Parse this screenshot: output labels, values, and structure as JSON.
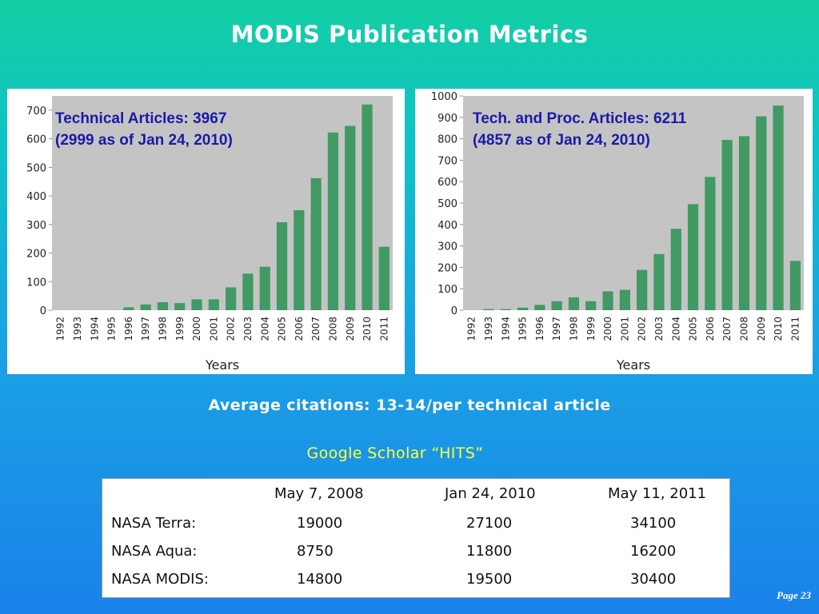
{
  "slide": {
    "title": "MODIS Publication Metrics",
    "citations": "Average citations: 13-14/per technical article",
    "scholar_heading": "Google Scholar “HITS”",
    "page_label": "Page 23"
  },
  "chart_data": [
    {
      "type": "bar",
      "note_line1": "Technical Articles: 3967",
      "note_line2": "(2999 as of Jan 24, 2010)",
      "xlabel": "Years",
      "ylabel": "",
      "ylim": [
        0,
        750
      ],
      "yticks": [
        0,
        100,
        200,
        300,
        400,
        500,
        600,
        700
      ],
      "grid": "none",
      "bar_color": "#419a63",
      "plot_bg": "#c4c4c4",
      "categories": [
        "1992",
        "1993",
        "1994",
        "1995",
        "1996",
        "1997",
        "1998",
        "1999",
        "2000",
        "2001",
        "2002",
        "2003",
        "2004",
        "2005",
        "2006",
        "2007",
        "2008",
        "2009",
        "2010",
        "2011"
      ],
      "values": [
        0,
        0,
        0,
        0,
        10,
        20,
        28,
        25,
        38,
        38,
        80,
        128,
        152,
        308,
        350,
        462,
        622,
        645,
        720,
        222
      ]
    },
    {
      "type": "bar",
      "note_line1": "Tech. and Proc. Articles: 6211",
      "note_line2": "(4857 as of Jan 24, 2010)",
      "xlabel": "Years",
      "ylabel": "",
      "ylim": [
        0,
        1000
      ],
      "yticks": [
        0,
        100,
        200,
        300,
        400,
        500,
        600,
        700,
        800,
        900,
        1000
      ],
      "grid": "none",
      "bar_color": "#419a63",
      "plot_bg": "#c4c4c4",
      "categories": [
        "1992",
        "1993",
        "1994",
        "1995",
        "1996",
        "1997",
        "1998",
        "1999",
        "2000",
        "2001",
        "2002",
        "2003",
        "2004",
        "2005",
        "2006",
        "2007",
        "2008",
        "2009",
        "2010",
        "2011"
      ],
      "values": [
        0,
        5,
        5,
        12,
        25,
        42,
        60,
        42,
        88,
        95,
        188,
        262,
        380,
        495,
        622,
        795,
        812,
        905,
        955,
        230
      ]
    }
  ],
  "hits_table": {
    "columns": [
      "May 7, 2008",
      "Jan 24, 2010",
      "May 11, 2011"
    ],
    "rows": [
      {
        "label": "NASA Terra:",
        "values": [
          "19000",
          "27100",
          "34100"
        ]
      },
      {
        "label": "NASA Aqua:",
        "values": [
          "8750",
          "11800",
          "16200"
        ]
      },
      {
        "label": "NASA MODIS:",
        "values": [
          "14800",
          "19500",
          "30400"
        ]
      }
    ]
  }
}
